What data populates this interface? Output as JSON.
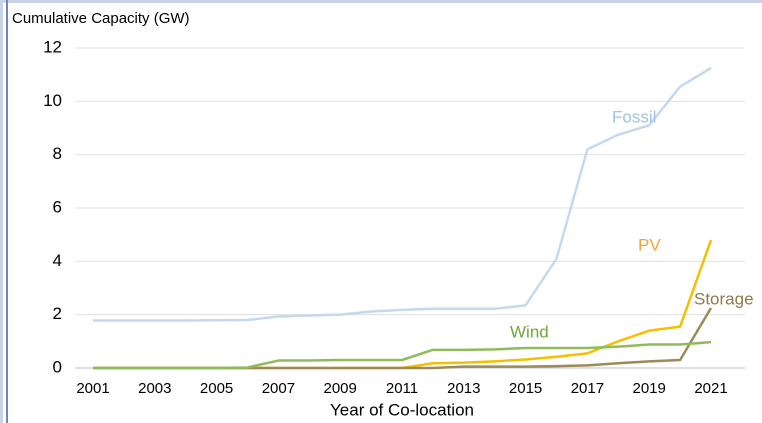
{
  "chart_data": {
    "type": "line",
    "y_label": "Cumulative Capacity (GW)",
    "x_label": "Year of Co-location",
    "x": [
      2001,
      2002,
      2003,
      2004,
      2005,
      2006,
      2007,
      2008,
      2009,
      2010,
      2011,
      2012,
      2013,
      2014,
      2015,
      2016,
      2017,
      2018,
      2019,
      2020,
      2021
    ],
    "xlim": [
      2001,
      2021
    ],
    "xticks": [
      2001,
      2003,
      2005,
      2007,
      2009,
      2011,
      2013,
      2015,
      2017,
      2019,
      2021
    ],
    "ylim": [
      0,
      12
    ],
    "yticks": [
      0,
      2,
      4,
      6,
      8,
      10,
      12
    ],
    "grid": true,
    "series": [
      {
        "name": "Fossil",
        "color": "#c5d9ee",
        "label_color": "#9dc3e6",
        "values": [
          1.78,
          1.78,
          1.78,
          1.78,
          1.79,
          1.8,
          1.93,
          1.97,
          2.0,
          2.12,
          2.18,
          2.22,
          2.22,
          2.22,
          2.35,
          4.1,
          8.2,
          8.75,
          9.1,
          10.55,
          11.25
        ]
      },
      {
        "name": "PV",
        "color": "#f5c000",
        "label_color": "#f4a23a",
        "values": [
          0,
          0,
          0,
          0,
          0,
          0,
          0,
          0,
          0,
          0,
          0,
          0.18,
          0.2,
          0.25,
          0.32,
          0.42,
          0.55,
          1.0,
          1.4,
          1.55,
          4.8
        ]
      },
      {
        "name": "Storage",
        "color": "#9c8a5a",
        "label_color": "#8c7a4a",
        "values": [
          0,
          0,
          0,
          0,
          0,
          0,
          0,
          0,
          0,
          0,
          0,
          0,
          0.05,
          0.05,
          0.05,
          0.07,
          0.1,
          0.18,
          0.25,
          0.3,
          2.25
        ]
      },
      {
        "name": "Wind",
        "color": "#8fbc5a",
        "label_color": "#70a83c",
        "values": [
          0,
          0,
          0,
          0,
          0,
          0.02,
          0.28,
          0.28,
          0.3,
          0.3,
          0.3,
          0.68,
          0.68,
          0.7,
          0.75,
          0.75,
          0.75,
          0.8,
          0.88,
          0.88,
          0.97
        ]
      }
    ]
  }
}
